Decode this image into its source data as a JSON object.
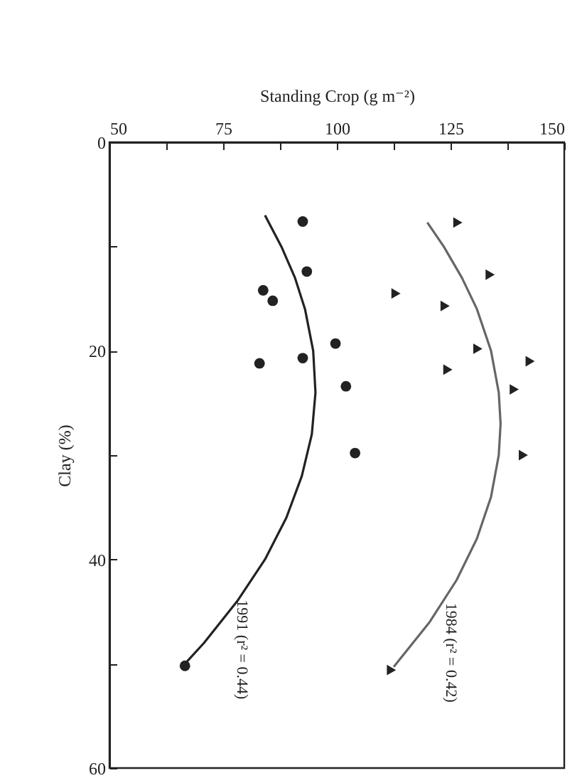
{
  "chart_data": {
    "type": "scatter",
    "xlabel": "Standing Crop (g m⁻²)",
    "ylabel": "Clay (%)",
    "xlim": [
      50,
      150
    ],
    "ylim": [
      60,
      0
    ],
    "xticks": [
      50,
      {
        "value": 62.5,
        "label": null
      },
      75,
      {
        "value": 87.5,
        "label": null
      },
      100,
      {
        "value": 112.5,
        "label": null
      },
      125,
      {
        "value": 137.5,
        "label": null
      },
      150
    ],
    "yticks": [
      0,
      {
        "value": 10,
        "label": null
      },
      20,
      {
        "value": 30,
        "label": null
      },
      40,
      {
        "value": 50,
        "label": null
      },
      60
    ],
    "series": [
      {
        "marker": "circle",
        "color": "#222222",
        "x": [
          92.5,
          93.4,
          83.8,
          85.9,
          99.7,
          92.5,
          83,
          102,
          104,
          66.6
        ],
        "values": [
          7.6,
          12.4,
          14.2,
          15.2,
          19.3,
          20.7,
          21.2,
          23.4,
          29.8,
          50.2
        ]
      },
      {
        "marker": "triangle",
        "color": "#222222",
        "x": [
          126.6,
          133.7,
          113,
          123.8,
          131,
          142.5,
          124.4,
          139,
          141,
          112
        ],
        "values": [
          7.7,
          12.7,
          14.5,
          15.7,
          19.8,
          21,
          21.8,
          23.7,
          30,
          50.6
        ]
      },
      {
        "type": "line",
        "line_style": "solid",
        "color": "#222222",
        "x": [
          84.2,
          87.8,
          90.8,
          93,
          94.8,
          95.3,
          94.5,
          92.3,
          88.9,
          84.2,
          78.1,
          70.8,
          66.6
        ],
        "values": [
          7,
          10,
          13,
          16,
          20,
          24,
          28,
          32,
          36,
          40,
          44,
          48,
          50
        ]
      },
      {
        "type": "line",
        "line_style": "solid",
        "color": "#666666",
        "x": [
          119.9,
          123.5,
          127.5,
          130.8,
          133.9,
          135.6,
          136,
          135.6,
          133.9,
          130.8,
          126.3,
          120.4,
          112.5
        ],
        "values": [
          7.7,
          10,
          13,
          16,
          20,
          24,
          27,
          30,
          34,
          38,
          42,
          46,
          50.3
        ]
      }
    ],
    "annotations": [
      "1991 (r² = 0.44)",
      "1984 (r² = 0.42)"
    ]
  }
}
